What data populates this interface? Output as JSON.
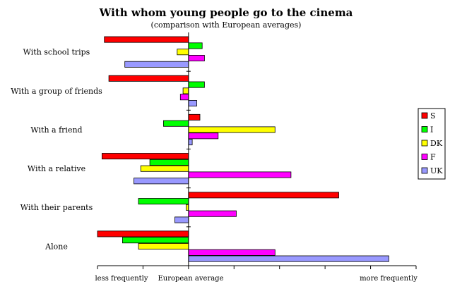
{
  "chart_data": {
    "type": "bar",
    "orientation": "horizontal",
    "title": "With whom young people go to the cinema",
    "subtitle": "(comparison with European averages)",
    "categories": [
      "With school trips",
      "With a group of friends",
      "With a friend",
      "With a relative",
      "With their parents",
      "Alone"
    ],
    "x_tick_labels": {
      "left": "less frequently",
      "center": "European average",
      "right": "more frequently"
    },
    "xlim": [
      -2,
      5
    ],
    "x_ticks": [
      -2,
      -1,
      0,
      1,
      2,
      3,
      4,
      5
    ],
    "legend_position": "right",
    "series": [
      {
        "name": "S",
        "color": "#ff0000",
        "values": [
          -1.85,
          -1.75,
          0.25,
          -1.9,
          3.3,
          -2.0
        ]
      },
      {
        "name": "I",
        "color": "#00ff00",
        "values": [
          0.3,
          0.35,
          -0.55,
          -0.85,
          -1.1,
          -1.45
        ]
      },
      {
        "name": "DK",
        "color": "#ffff00",
        "values": [
          -0.25,
          -0.12,
          1.9,
          -1.05,
          -0.05,
          -1.1
        ]
      },
      {
        "name": "F",
        "color": "#ff00ff",
        "values": [
          0.35,
          -0.18,
          0.65,
          2.25,
          1.05,
          1.9
        ]
      },
      {
        "name": "UK",
        "color": "#9999ff",
        "values": [
          -1.4,
          0.18,
          0.08,
          -1.2,
          -0.3,
          4.4
        ]
      }
    ]
  }
}
